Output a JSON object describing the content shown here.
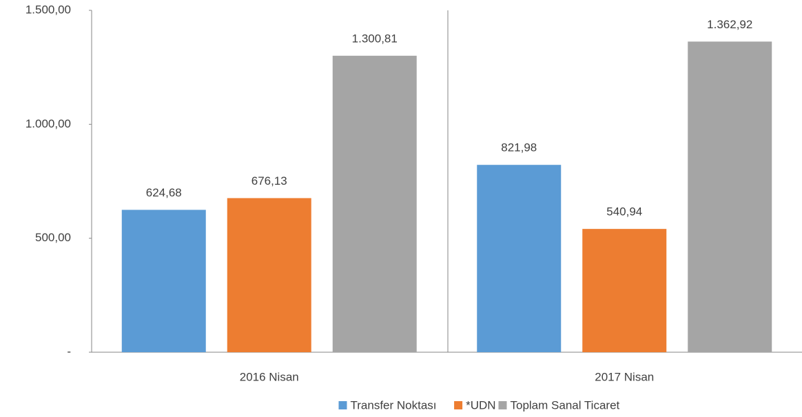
{
  "chart_data": {
    "type": "bar",
    "categories": [
      "2016 Nisan",
      "2017 Nisan"
    ],
    "series": [
      {
        "name": "Transfer Noktası",
        "color": "#5b9bd5",
        "values": [
          624.68,
          821.98
        ],
        "value_labels": [
          "624,68",
          "821,98"
        ]
      },
      {
        "name": "*UDN",
        "color": "#ed7d31",
        "values": [
          676.13,
          540.94
        ],
        "value_labels": [
          "676,13",
          "540,94"
        ]
      },
      {
        "name": "Toplam Sanal Ticaret",
        "color": "#a5a5a5",
        "values": [
          1300.81,
          1362.92
        ],
        "value_labels": [
          "1.300,81",
          "1.362,92"
        ]
      }
    ],
    "ylim": [
      0,
      1500
    ],
    "yticks": [
      {
        "value": 0,
        "label": "-"
      },
      {
        "value": 500,
        "label": "500,00"
      },
      {
        "value": 1000,
        "label": "1.000,00"
      },
      {
        "value": 1500,
        "label": "1.500,00"
      }
    ],
    "legend": "bottom"
  }
}
